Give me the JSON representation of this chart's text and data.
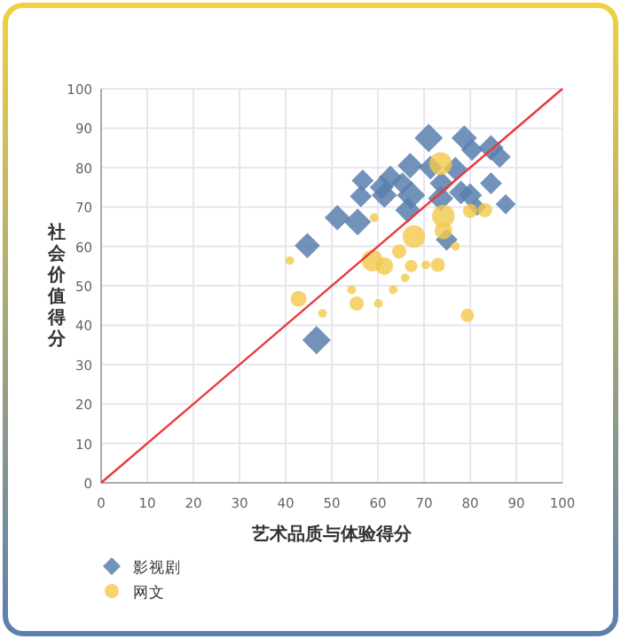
{
  "chart_data": {
    "type": "bubble",
    "xlabel": "艺术品质与体验得分",
    "ylabel": "社会价值得分",
    "xlim": [
      0,
      100
    ],
    "ylim": [
      0,
      100
    ],
    "xticks": [
      0,
      10,
      20,
      30,
      40,
      50,
      60,
      70,
      80,
      90,
      100
    ],
    "yticks": [
      0,
      10,
      20,
      30,
      40,
      50,
      60,
      70,
      80,
      90,
      100
    ],
    "grid": true,
    "legend": "bottom left",
    "series": [
      {
        "name": "影视剧",
        "color": "#5b7fae",
        "marker": "diamond",
        "x": [
          71,
          78.7,
          84.5,
          86.4,
          80.4,
          67,
          71.4,
          62.7,
          56.7,
          60.8,
          65.3,
          76.8,
          73.8,
          78,
          56.3,
          61.4,
          67.2,
          73.6,
          80,
          84.5,
          87.7,
          66.5,
          51.2,
          55.6,
          44.7,
          74.9,
          46.7,
          81.5
        ],
        "values": [
          87.5,
          87.5,
          85,
          82.7,
          84.5,
          80.5,
          80,
          77.5,
          76.7,
          75,
          76,
          79.7,
          76,
          73.7,
          72.7,
          73,
          73,
          72.2,
          73,
          76,
          70.7,
          69.2,
          67.3,
          66.2,
          60.2,
          61.7,
          36.2,
          70
        ],
        "sizes": [
          1,
          0.8,
          0.8,
          0.6,
          0.6,
          0.8,
          0.7,
          0.7,
          0.6,
          0.7,
          0.6,
          0.7,
          0.7,
          0.7,
          0.6,
          0.8,
          1,
          0.8,
          0.7,
          0.6,
          0.5,
          0.8,
          0.8,
          0.9,
          0.8,
          0.6,
          1,
          0.4
        ]
      },
      {
        "name": "网文",
        "color": "#f2c94c",
        "marker": "circle",
        "x": [
          73.6,
          74.2,
          80,
          83.2,
          67.8,
          59.2,
          40.9,
          74.2,
          58.8,
          61.4,
          64.6,
          73,
          67.2,
          42.8,
          55.4,
          60.1,
          79.4,
          48,
          65.9,
          70.4,
          54.3,
          63.3,
          76.8
        ],
        "values": [
          81,
          67.7,
          69,
          69.2,
          62.5,
          67.3,
          56.4,
          64,
          56.4,
          55,
          58.7,
          55.3,
          55,
          46.7,
          45.5,
          45.5,
          42.5,
          43,
          52,
          55.3,
          49,
          49,
          60
        ],
        "sizes": [
          1,
          1,
          0.4,
          0.4,
          1,
          0.15,
          0.15,
          0.6,
          0.9,
          0.6,
          0.4,
          0.4,
          0.3,
          0.5,
          0.4,
          0.15,
          0.35,
          0.15,
          0.15,
          0.15,
          0.15,
          0.15,
          0.15
        ]
      },
      {
        "type": "line",
        "color": "#e8383d",
        "x": [
          0,
          100
        ],
        "values": [
          0,
          100
        ]
      }
    ]
  }
}
